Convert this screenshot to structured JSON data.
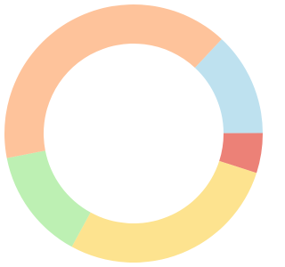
{
  "chart_data": {
    "type": "donut",
    "series": [
      {
        "color": "#bee1ef",
        "values": [
          13
        ]
      },
      {
        "color": "#ec8177",
        "values": [
          5
        ]
      },
      {
        "color": "#fde38f",
        "values": [
          28
        ]
      },
      {
        "color": "#bdf0b3",
        "values": [
          14
        ]
      },
      {
        "color": "#fec39b",
        "values": [
          40
        ]
      }
    ]
  }
}
